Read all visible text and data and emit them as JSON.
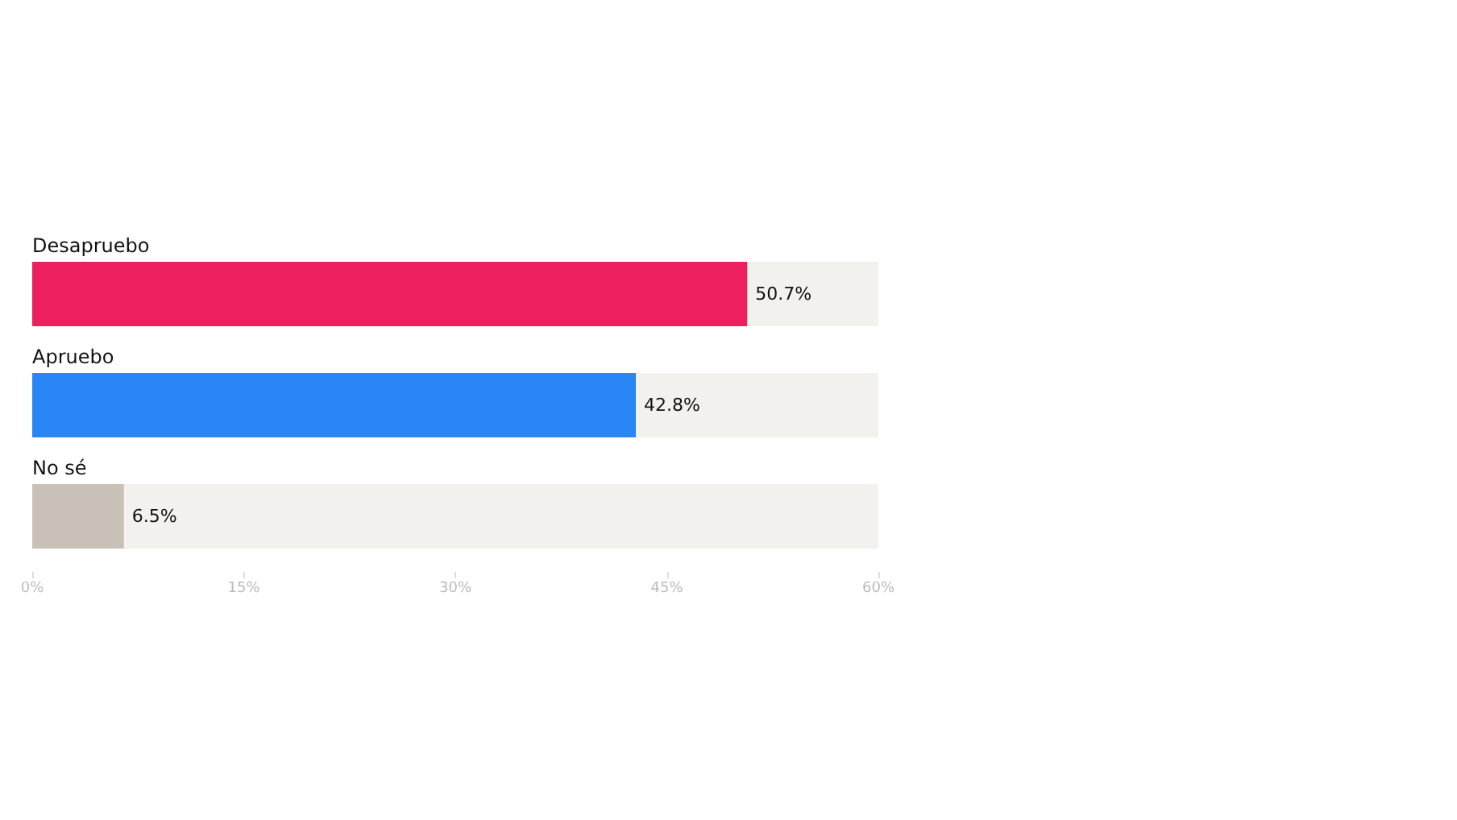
{
  "chart_data": {
    "type": "bar",
    "orientation": "horizontal",
    "categories": [
      "Desapruebo",
      "Apruebo",
      "No sé"
    ],
    "values": [
      50.7,
      42.8,
      6.5
    ],
    "colors": [
      "#ee1f5f",
      "#2a86f5",
      "#c9c1b8"
    ],
    "value_labels": [
      "50.7%",
      "42.8%",
      "6.5%"
    ],
    "xlim": [
      0,
      60
    ],
    "xticks": [
      {
        "value": 0,
        "label": "0%"
      },
      {
        "value": 15,
        "label": "15%"
      },
      {
        "value": 30,
        "label": "30%"
      },
      {
        "value": 45,
        "label": "45%"
      },
      {
        "value": 60,
        "label": "60%"
      }
    ],
    "grid": false
  }
}
